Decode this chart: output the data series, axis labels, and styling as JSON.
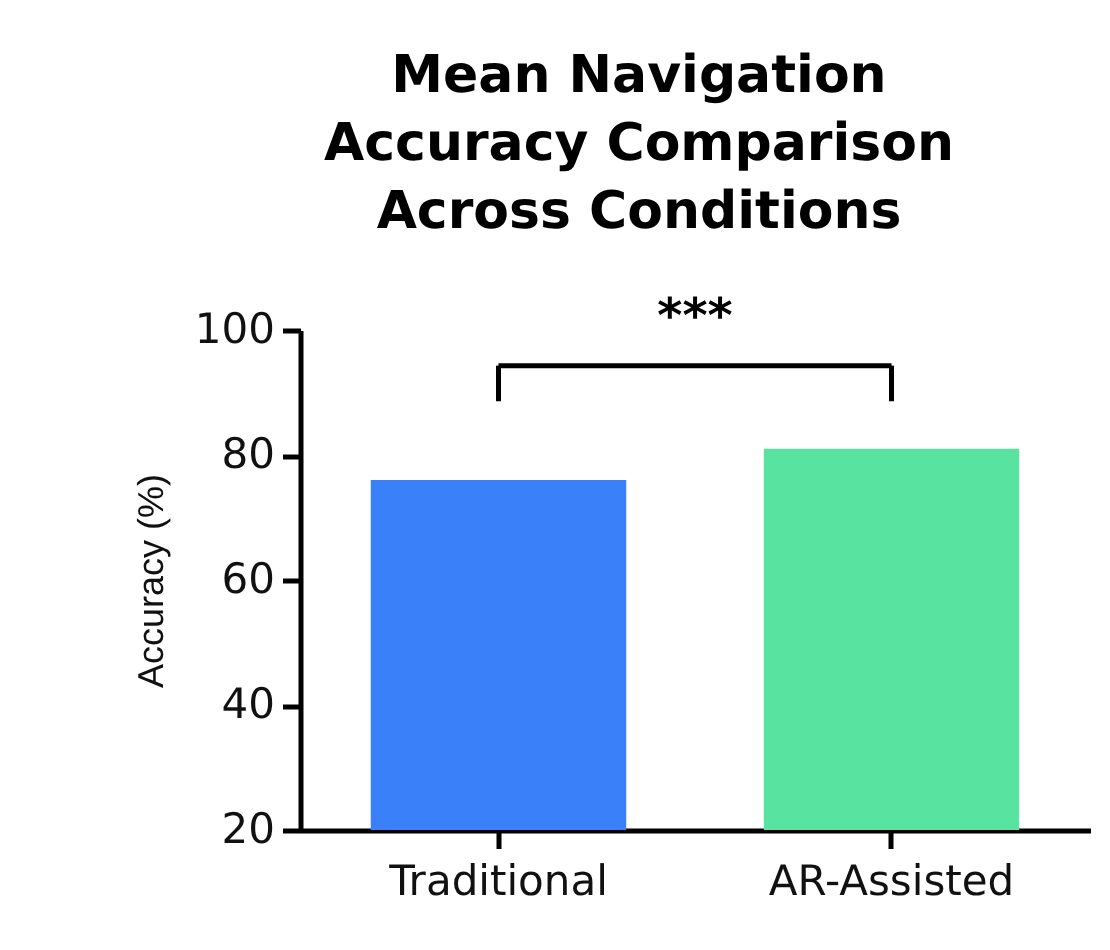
{
  "chart_data": {
    "type": "bar",
    "title": "Mean Navigation Accuracy Comparison Across Conditions",
    "ylabel": "Accuracy (%)",
    "categories": [
      "Traditional",
      "AR-Assisted"
    ],
    "values": [
      76,
      81
    ],
    "colors": [
      "#3a80f8",
      "#58e4a0"
    ],
    "ylim": [
      20,
      100
    ],
    "yticks": [
      20,
      40,
      60,
      80,
      100
    ],
    "annotations": [
      "***"
    ]
  }
}
